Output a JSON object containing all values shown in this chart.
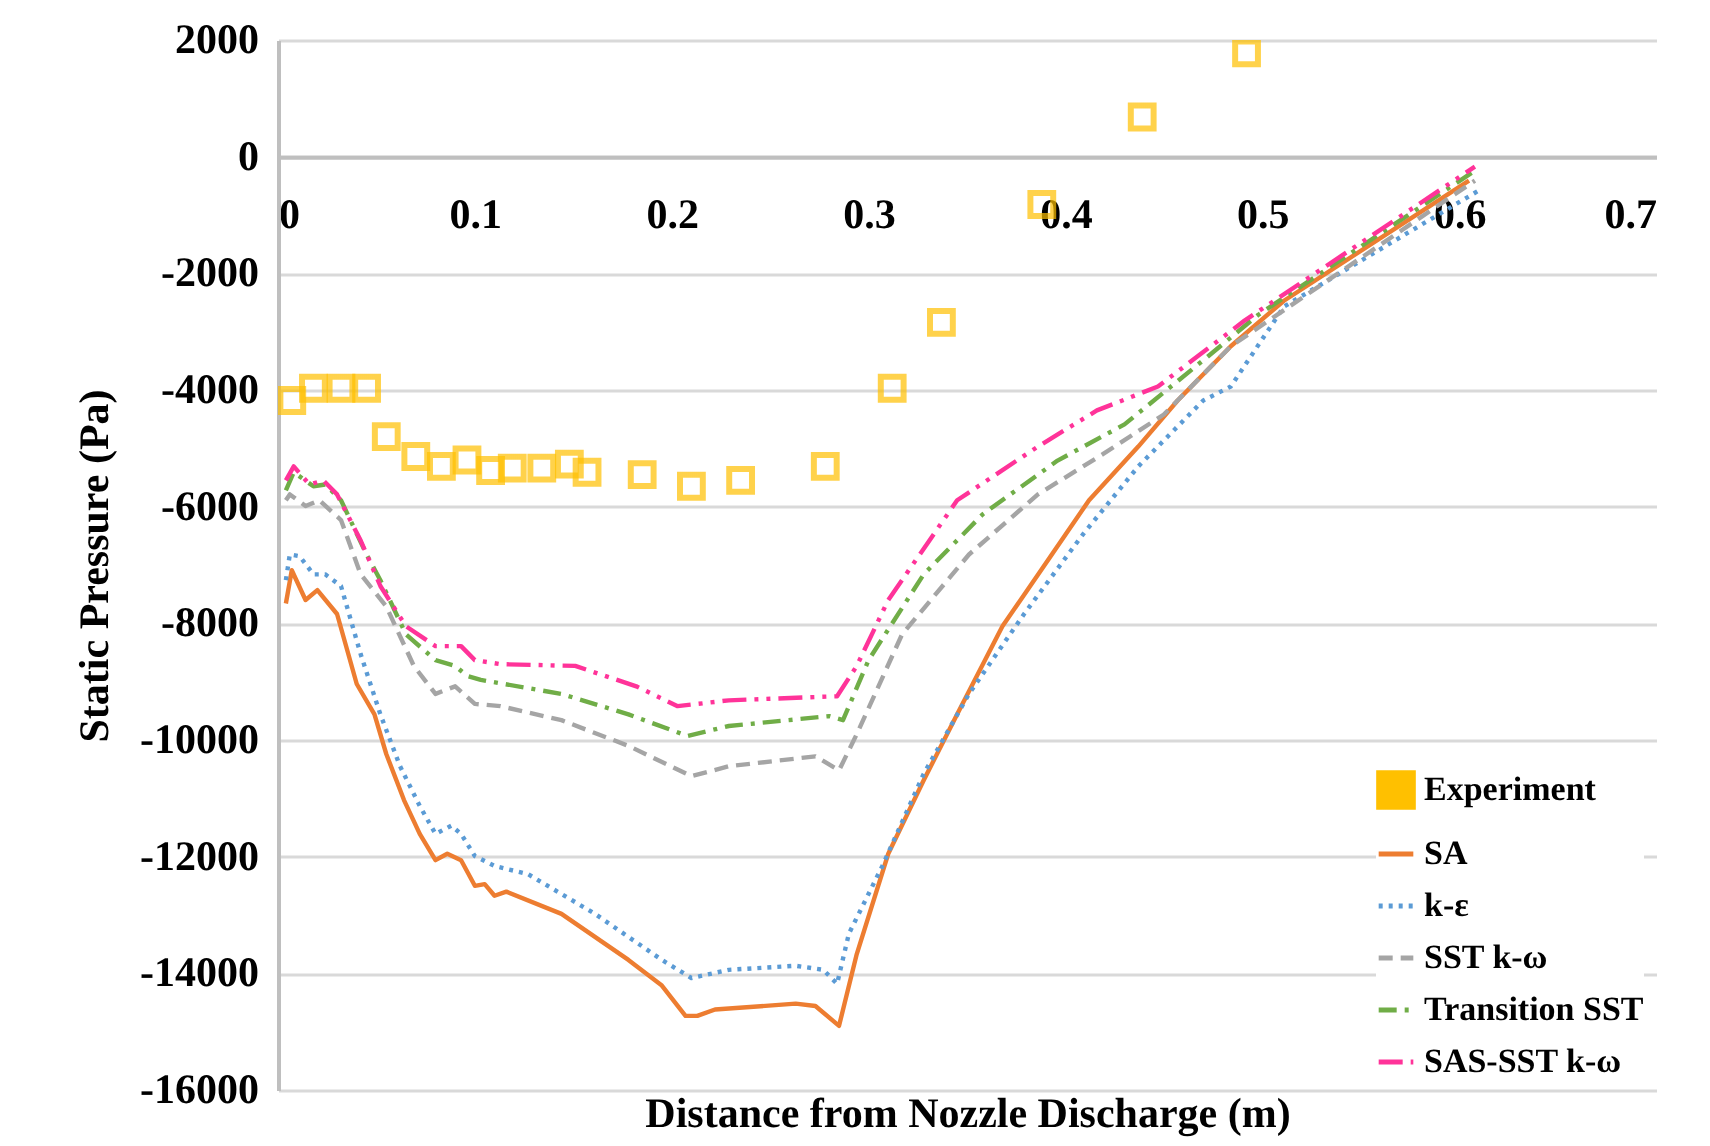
{
  "chart_data": {
    "type": "line",
    "xlabel": "Distance from Nozzle Discharge (m)",
    "ylabel": "Static Pressure (Pa)",
    "xlim": [
      0,
      0.7
    ],
    "xticks": [
      0,
      0.1,
      0.2,
      0.3,
      0.4,
      0.5,
      0.6,
      0.7
    ],
    "ylim": [
      -16000,
      2000
    ],
    "yticks": [
      -16000,
      -14000,
      -12000,
      -10000,
      -8000,
      -6000,
      -4000,
      -2000,
      0,
      2000
    ],
    "grid": "y",
    "legend": "bottom right",
    "series": [
      {
        "name": "Experiment",
        "type": "scatter",
        "marker": "square",
        "color": "#ffc000",
        "x": [
          0.007,
          0.018,
          0.032,
          0.045,
          0.055,
          0.07,
          0.083,
          0.096,
          0.108,
          0.119,
          0.134,
          0.148,
          0.157,
          0.185,
          0.21,
          0.235,
          0.278,
          0.312,
          0.337,
          0.388,
          0.439,
          0.492
        ],
        "values": [
          -4180,
          -3970,
          -3970,
          -3970,
          -4800,
          -5140,
          -5310,
          -5200,
          -5380,
          -5340,
          -5340,
          -5270,
          -5410,
          -5450,
          -5650,
          -5550,
          -5310,
          -3970,
          -2840,
          -820,
          680,
          1780
        ]
      },
      {
        "name": "SA",
        "line_style": "solid",
        "color": "#ed7d31",
        "x": [
          0.004,
          0.007,
          0.014,
          0.02,
          0.03,
          0.04,
          0.049,
          0.055,
          0.064,
          0.072,
          0.08,
          0.086,
          0.093,
          0.1,
          0.105,
          0.11,
          0.116,
          0.144,
          0.178,
          0.195,
          0.207,
          0.213,
          0.222,
          0.263,
          0.273,
          0.285,
          0.294,
          0.31,
          0.328,
          0.345,
          0.368,
          0.389,
          0.412,
          0.437,
          0.457,
          0.484,
          0.511,
          0.605
        ],
        "values": [
          -7660,
          -7090,
          -7600,
          -7430,
          -7840,
          -9040,
          -9560,
          -10240,
          -11030,
          -11610,
          -12060,
          -11950,
          -12060,
          -12500,
          -12470,
          -12670,
          -12600,
          -12980,
          -13770,
          -14210,
          -14730,
          -14730,
          -14620,
          -14520,
          -14560,
          -14900,
          -13670,
          -11950,
          -10690,
          -9560,
          -8050,
          -7020,
          -5890,
          -4970,
          -4180,
          -3250,
          -2470,
          -410
        ]
      },
      {
        "name": "k-ε",
        "line_style": "dotted",
        "color": "#5b9bd5",
        "x": [
          0.004,
          0.006,
          0.011,
          0.018,
          0.024,
          0.032,
          0.042,
          0.052,
          0.062,
          0.072,
          0.08,
          0.088,
          0.093,
          0.1,
          0.11,
          0.127,
          0.161,
          0.195,
          0.21,
          0.229,
          0.263,
          0.277,
          0.284,
          0.29,
          0.307,
          0.328,
          0.351,
          0.379,
          0.409,
          0.437,
          0.47,
          0.484,
          0.511,
          0.61
        ],
        "values": [
          -7260,
          -6820,
          -6850,
          -7160,
          -7160,
          -7360,
          -8530,
          -9560,
          -10450,
          -11130,
          -11610,
          -11470,
          -11610,
          -11990,
          -12160,
          -12300,
          -12980,
          -13770,
          -14080,
          -13940,
          -13870,
          -13940,
          -14180,
          -13320,
          -12160,
          -10580,
          -9210,
          -7840,
          -6470,
          -5310,
          -4180,
          -3940,
          -2570,
          -580
        ]
      },
      {
        "name": "SST k-ω",
        "line_style": "dashed",
        "color": "#a5a5a5",
        "x": [
          0.004,
          0.006,
          0.014,
          0.021,
          0.032,
          0.042,
          0.055,
          0.069,
          0.08,
          0.09,
          0.1,
          0.113,
          0.144,
          0.178,
          0.21,
          0.229,
          0.273,
          0.285,
          0.294,
          0.317,
          0.351,
          0.386,
          0.419,
          0.45,
          0.484,
          0.608
        ],
        "values": [
          -5890,
          -5790,
          -5990,
          -5890,
          -6230,
          -7160,
          -7710,
          -8730,
          -9210,
          -9080,
          -9380,
          -9420,
          -9660,
          -10100,
          -10620,
          -10450,
          -10280,
          -10520,
          -9900,
          -8190,
          -6820,
          -5790,
          -5100,
          -4420,
          -3250,
          -410
        ]
      },
      {
        "name": "Transition SST",
        "line_style": "dashdot",
        "color": "#70ad47",
        "x": [
          0.004,
          0.008,
          0.018,
          0.024,
          0.032,
          0.045,
          0.052,
          0.065,
          0.08,
          0.09,
          0.096,
          0.103,
          0.144,
          0.178,
          0.208,
          0.229,
          0.28,
          0.287,
          0.3,
          0.328,
          0.358,
          0.396,
          0.43,
          0.47,
          0.498,
          0.608
        ],
        "values": [
          -5720,
          -5410,
          -5650,
          -5620,
          -5890,
          -6820,
          -7260,
          -8190,
          -8630,
          -8730,
          -8900,
          -8970,
          -9210,
          -9560,
          -9930,
          -9760,
          -9590,
          -9660,
          -8630,
          -7160,
          -6130,
          -5210,
          -4590,
          -3490,
          -2710,
          -240
        ]
      },
      {
        "name": "SAS-SST k-ω",
        "line_style": "dashdotdot",
        "color": "#ff3399",
        "x": [
          0.004,
          0.008,
          0.016,
          0.023,
          0.03,
          0.042,
          0.052,
          0.065,
          0.08,
          0.093,
          0.1,
          0.113,
          0.151,
          0.182,
          0.203,
          0.229,
          0.284,
          0.294,
          0.31,
          0.345,
          0.386,
          0.416,
          0.447,
          0.491,
          0.608
        ],
        "values": [
          -5550,
          -5310,
          -5620,
          -5550,
          -5790,
          -6580,
          -7360,
          -8050,
          -8390,
          -8390,
          -8630,
          -8700,
          -8730,
          -9080,
          -9420,
          -9320,
          -9250,
          -8730,
          -7600,
          -5890,
          -4970,
          -4350,
          -3940,
          -2810,
          -170
        ]
      }
    ]
  }
}
